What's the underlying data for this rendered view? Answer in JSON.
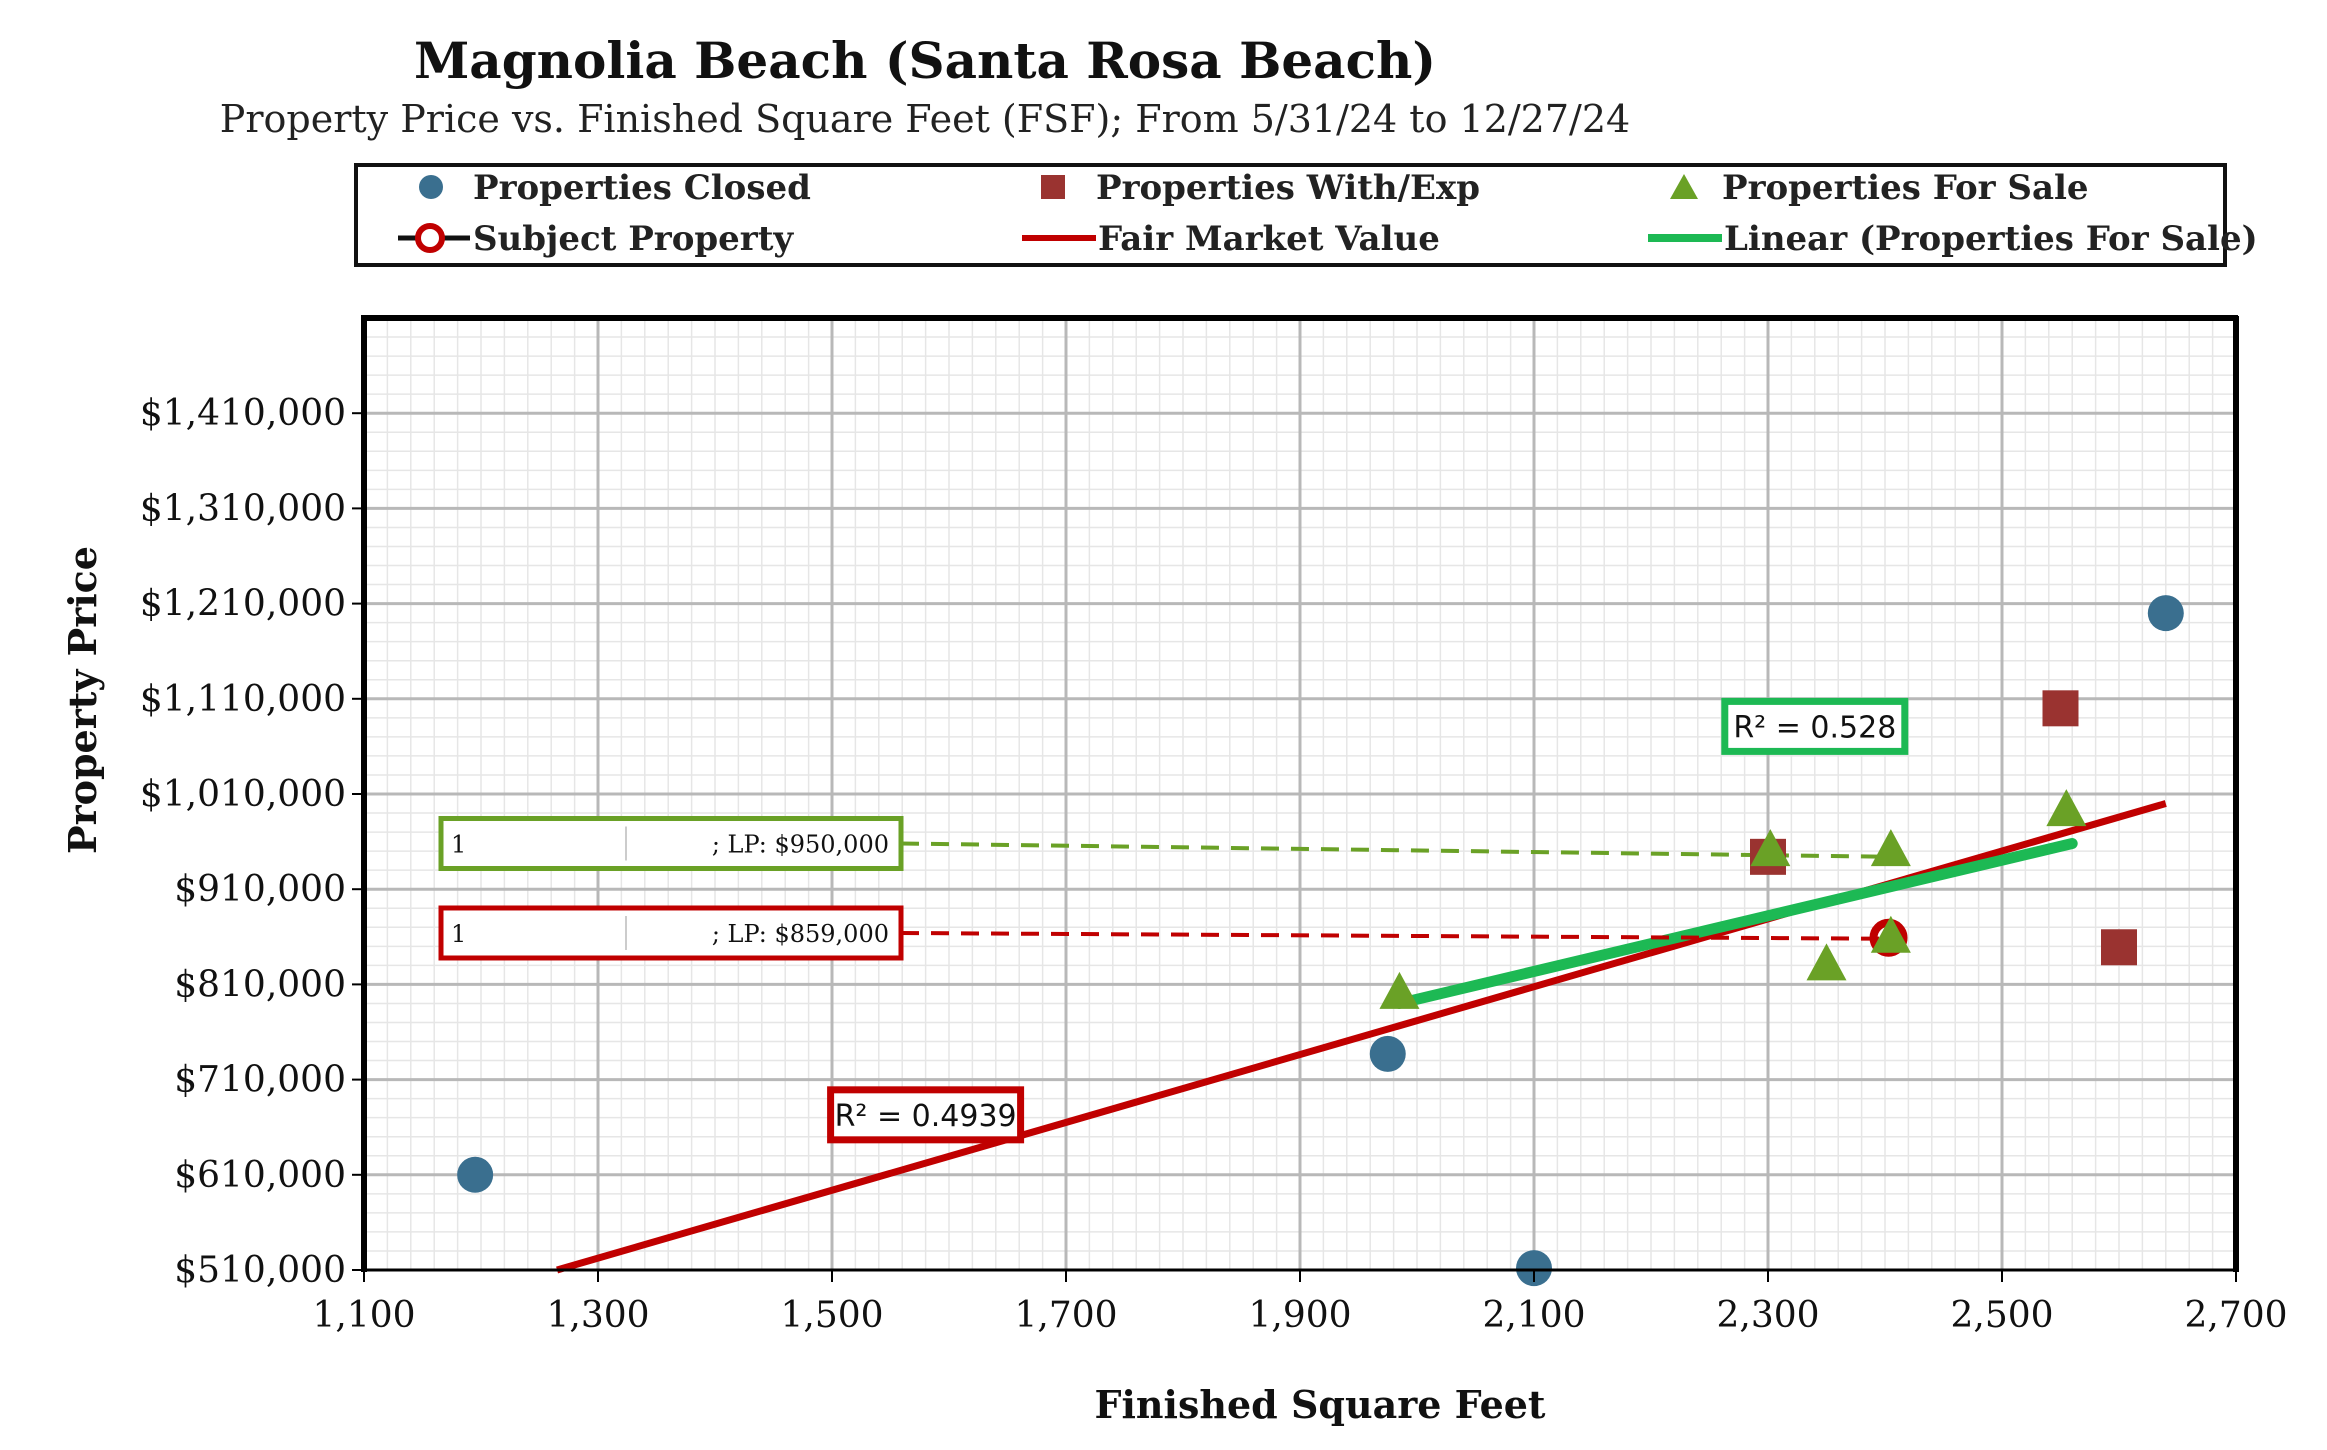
{
  "chart_data": {
    "type": "scatter",
    "title": "Magnolia Beach (Santa Rosa Beach)",
    "subtitle": "Property Price vs. Finished Square Feet (FSF); From 5/31/24 to 12/27/24",
    "xlabel": "Finished Square Feet",
    "ylabel": "Property Price",
    "xlim": [
      1100,
      2700
    ],
    "ylim": [
      510000,
      1510000
    ],
    "x_ticks": [
      1100,
      1300,
      1500,
      1700,
      1900,
      2100,
      2300,
      2500,
      2700
    ],
    "x_tick_labels": [
      "1,100",
      "1,300",
      "1,500",
      "1,700",
      "1,900",
      "2,100",
      "2,300",
      "2,500",
      "2,700"
    ],
    "y_ticks": [
      510000,
      610000,
      710000,
      810000,
      910000,
      1010000,
      1110000,
      1210000,
      1310000,
      1410000
    ],
    "y_tick_labels": [
      "$510,000",
      "$610,000",
      "$710,000",
      "$810,000",
      "$910,000",
      "$1,010,000",
      "$1,110,000",
      "$1,210,000",
      "$1,310,000",
      "$1,410,000"
    ],
    "grid": true,
    "legend": {
      "placement": "top",
      "entries": [
        {
          "label": "Properties Closed",
          "marker": "circle",
          "color": "#3a6f8f"
        },
        {
          "label": "Properties With/Exp",
          "marker": "square",
          "color": "#9a3330"
        },
        {
          "label": "Properties For Sale",
          "marker": "triangle",
          "color": "#6aa126"
        },
        {
          "label": "Subject Property",
          "marker": "ring-line",
          "color": "#c00000"
        },
        {
          "label": "Fair Market Value",
          "marker": "line",
          "color": "#c00000"
        },
        {
          "label": "Linear (Properties For Sale)",
          "marker": "line",
          "color": "#1db954"
        }
      ]
    },
    "series": [
      {
        "name": "Properties Closed",
        "marker": "circle",
        "color": "#3a6f8f",
        "points": [
          [
            1195,
            610000
          ],
          [
            1975,
            737000
          ],
          [
            2100,
            512000
          ],
          [
            2640,
            1200000
          ]
        ]
      },
      {
        "name": "Properties With/Exp",
        "marker": "square",
        "color": "#9a3330",
        "points": [
          [
            2300,
            944000
          ],
          [
            2550,
            1100000
          ],
          [
            2600,
            849000
          ]
        ]
      },
      {
        "name": "Properties For Sale",
        "marker": "triangle",
        "color": "#6aa126",
        "points": [
          [
            1985,
            800000
          ],
          [
            2302,
            950000
          ],
          [
            2350,
            830000
          ],
          [
            2405,
            950000
          ],
          [
            2405,
            859000
          ],
          [
            2555,
            992000
          ]
        ]
      },
      {
        "name": "Subject Property",
        "marker": "ring",
        "color": "#c00000",
        "points": [
          [
            2403,
            859000
          ]
        ]
      }
    ],
    "lines": [
      {
        "name": "Fair Market Value",
        "color": "#c00000",
        "points": [
          [
            1265,
            510000
          ],
          [
            2640,
            1000000
          ]
        ],
        "r2_label": "R² = 0.4939",
        "r2_at": [
          1580,
          673000
        ]
      },
      {
        "name": "Linear (Properties For Sale)",
        "color": "#1db954",
        "points": [
          [
            1985,
            790000
          ],
          [
            2560,
            958000
          ]
        ],
        "r2_label": "R² = 0.528",
        "r2_at": [
          2340,
          1081000
        ]
      }
    ],
    "callouts": [
      {
        "name": "callout-950",
        "number": "1",
        "text": "; LP: $950,000",
        "color": "#6aa126",
        "anchor": [
          1700,
          958000
        ],
        "target": [
          2405,
          944000
        ]
      },
      {
        "name": "callout-859",
        "number": "1",
        "text": "; LP: $859,000",
        "color": "#c00000",
        "anchor": [
          1700,
          864000
        ],
        "target": [
          2400,
          858000
        ]
      }
    ]
  }
}
